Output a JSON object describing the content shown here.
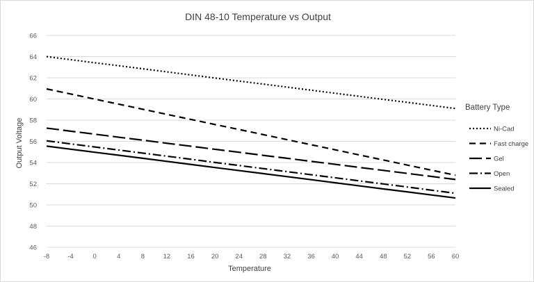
{
  "chart_data": {
    "type": "line",
    "title": "DIN 48-10 Temperature vs Output",
    "xlabel": "Temperature",
    "ylabel": "Output Voltage",
    "x": [
      -8,
      -4,
      0,
      4,
      8,
      12,
      16,
      20,
      24,
      28,
      32,
      36,
      40,
      44,
      48,
      52,
      56,
      60
    ],
    "y_ticks": [
      46,
      48,
      50,
      52,
      54,
      56,
      58,
      60,
      62,
      64,
      66
    ],
    "ylim": [
      46,
      66
    ],
    "grid": true,
    "legend_title": "Battery Type",
    "legend_position": "right",
    "series": [
      {
        "name": "Ni-Cad",
        "dash": "2,3",
        "start": 64.0,
        "end": 59.1,
        "values": [
          64.0,
          63.71,
          63.42,
          63.14,
          62.85,
          62.56,
          62.27,
          61.98,
          61.69,
          61.41,
          61.12,
          60.83,
          60.54,
          60.25,
          59.96,
          59.68,
          59.39,
          59.1
        ]
      },
      {
        "name": "Fast charge",
        "dash": "9,6",
        "start": 60.95,
        "end": 52.8,
        "values": [
          60.95,
          60.47,
          59.99,
          59.51,
          59.03,
          58.55,
          58.07,
          57.59,
          57.12,
          56.64,
          56.16,
          55.68,
          55.2,
          54.72,
          54.24,
          53.76,
          53.28,
          52.8
        ]
      },
      {
        "name": "Gel",
        "dash": "18,6",
        "start": 57.25,
        "end": 52.4,
        "values": [
          57.25,
          56.96,
          56.68,
          56.39,
          56.11,
          55.82,
          55.54,
          55.25,
          54.97,
          54.68,
          54.4,
          54.11,
          53.83,
          53.54,
          53.26,
          52.97,
          52.69,
          52.4
        ]
      },
      {
        "name": "Open",
        "dash": "12,4,2,4",
        "start": 56.05,
        "end": 51.1,
        "values": [
          56.05,
          55.76,
          55.47,
          55.18,
          54.89,
          54.6,
          54.31,
          54.01,
          53.72,
          53.43,
          53.14,
          52.85,
          52.56,
          52.27,
          51.98,
          51.69,
          51.39,
          51.1
        ]
      },
      {
        "name": "Sealed",
        "dash": "",
        "start": 55.55,
        "end": 50.65,
        "values": [
          55.55,
          55.26,
          54.97,
          54.69,
          54.4,
          54.11,
          53.82,
          53.53,
          53.24,
          52.96,
          52.67,
          52.38,
          52.09,
          51.8,
          51.51,
          51.23,
          50.94,
          50.65
        ]
      }
    ]
  },
  "colors": {
    "line": "#000000",
    "grid": "#d9d9d9",
    "text": "#595959",
    "border": "#d9d9d9",
    "background": "#ffffff"
  }
}
